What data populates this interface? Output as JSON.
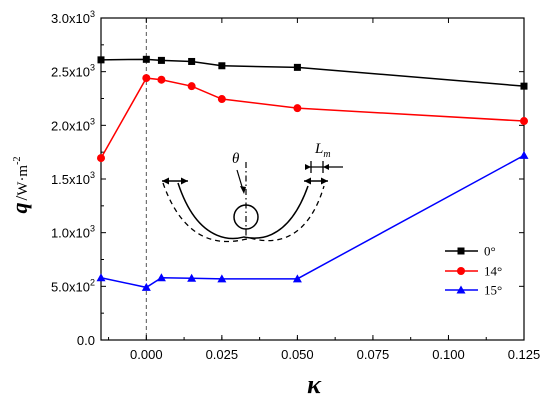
{
  "chart_data": {
    "type": "line",
    "xlabel": "κ",
    "xlim": [
      -0.015,
      0.125
    ],
    "ylim": [
      0,
      3000
    ],
    "xticks": [
      {
        "value": 0.0,
        "label": "0.000"
      },
      {
        "value": 0.025,
        "label": "0.025"
      },
      {
        "value": 0.05,
        "label": "0.050"
      },
      {
        "value": 0.075,
        "label": "0.075"
      },
      {
        "value": 0.1,
        "label": "0.100"
      },
      {
        "value": 0.125,
        "label": "0.125"
      }
    ],
    "yticks": [
      {
        "value": 0,
        "mantissa": "0.0",
        "exp": ""
      },
      {
        "value": 500,
        "mantissa": "5.0x10",
        "exp": "2"
      },
      {
        "value": 1000,
        "mantissa": "1.0x10",
        "exp": "3"
      },
      {
        "value": 1500,
        "mantissa": "1.5x10",
        "exp": "3"
      },
      {
        "value": 2000,
        "mantissa": "2.0x10",
        "exp": "3"
      },
      {
        "value": 2500,
        "mantissa": "2.5x10",
        "exp": "3"
      },
      {
        "value": 3000,
        "mantissa": "3.0x10",
        "exp": "3"
      }
    ],
    "ylabel": {
      "symbol": "q",
      "unit": "W·m",
      "exp": "-2"
    },
    "reference_line_x": 0.0,
    "x": [
      -0.015,
      0.0,
      0.005,
      0.015,
      0.025,
      0.05,
      0.125
    ],
    "series": [
      {
        "name": "0°",
        "color": "#000000",
        "marker": "square",
        "values": [
          2610,
          2615,
          2605,
          2595,
          2555,
          2540,
          2365
        ]
      },
      {
        "name": "14°",
        "color": "#ff0000",
        "marker": "circle",
        "values": [
          1695,
          2440,
          2425,
          2365,
          2245,
          2160,
          2040
        ]
      },
      {
        "name": "15°",
        "color": "#0000ff",
        "marker": "triangle",
        "values": [
          580,
          490,
          580,
          575,
          570,
          570,
          1720
        ]
      }
    ],
    "legend_position": "right",
    "inset": {
      "angle_label": "θ",
      "length_label": {
        "main": "L",
        "sub": "m"
      }
    }
  }
}
